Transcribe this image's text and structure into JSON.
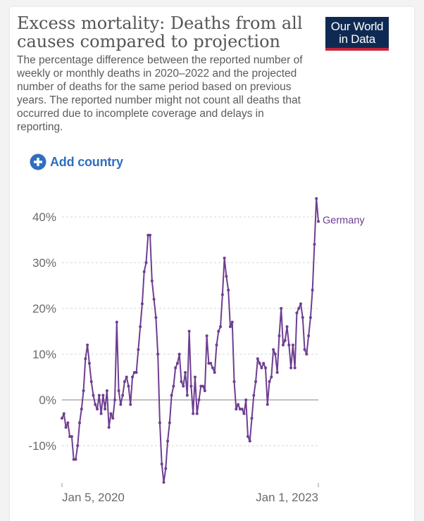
{
  "header": {
    "title": "Excess mortality: Deaths from all causes compared to projection",
    "subtitle": "The percentage difference between the reported number of weekly or monthly deaths in 2020–2022 and the projected number of deaths for the same period based on previous years. The reported number might not count all deaths that occurred due to incomplete coverage and delays in reporting.",
    "logo_line1": "Our World",
    "logo_line2": "in Data"
  },
  "controls": {
    "add_country_label": "Add country",
    "add_icon": "plus-circle-icon"
  },
  "colors": {
    "series": "#6d3e91",
    "accent": "#2f6fbf",
    "logo_bg": "#0f2a52",
    "logo_bar": "#c5253b"
  },
  "chart_data": {
    "type": "line",
    "title": "Excess mortality: Deaths from all causes compared to projection",
    "xlabel": "",
    "ylabel": "",
    "ylim": [
      -18,
      44
    ],
    "yticks": [
      -10,
      0,
      10,
      20,
      30,
      40
    ],
    "ytick_labels": [
      "-10%",
      "0%",
      "10%",
      "20%",
      "30%",
      "40%"
    ],
    "xtick_labels": [
      "Jan 5, 2020",
      "Jan 1, 2023"
    ],
    "grid": true,
    "series": [
      {
        "name": "Germany",
        "values": [
          -4,
          -3,
          -6,
          -5,
          -8,
          -8,
          -13,
          -13,
          -10,
          -5,
          -2,
          2,
          9,
          12,
          8,
          4,
          1,
          -1,
          -2,
          1,
          -3,
          1,
          -2,
          2,
          -6,
          -3,
          -4,
          0,
          17,
          2,
          -1,
          1,
          4,
          5,
          3,
          -1,
          5,
          6,
          6,
          11,
          16,
          21,
          28,
          30,
          36,
          36,
          26,
          22,
          18,
          10,
          -5,
          -14,
          -18,
          -15,
          -9,
          -5,
          1,
          3,
          7,
          8,
          10,
          4,
          3,
          6,
          1,
          15,
          3,
          -3,
          5,
          -3,
          0,
          3,
          3,
          2,
          14,
          8,
          8,
          7,
          6,
          12,
          15,
          16,
          23,
          31,
          27,
          24,
          16,
          17,
          4,
          -2,
          -1,
          -2,
          -2,
          -3,
          0,
          -8,
          -9,
          -4,
          1,
          4,
          9,
          8,
          7,
          8,
          7,
          -1,
          4,
          5,
          11,
          10,
          6,
          14,
          20,
          12,
          13,
          16,
          12,
          7,
          12,
          7,
          19,
          20,
          21,
          18,
          11,
          10,
          14,
          18,
          24,
          34,
          44,
          39
        ]
      }
    ]
  }
}
